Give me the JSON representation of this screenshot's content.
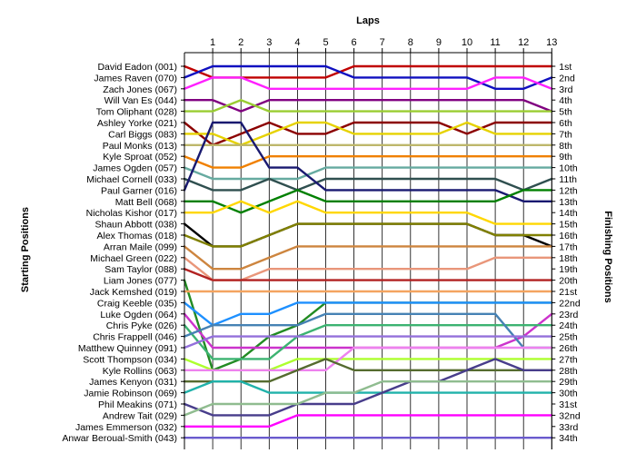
{
  "chart_data": {
    "type": "line",
    "title": "Laps",
    "ylabel_left": "Starting Positions",
    "ylabel_right": "Finishing Positions",
    "x": [
      0,
      1,
      2,
      3,
      4,
      5,
      6,
      7,
      8,
      9,
      10,
      11,
      12,
      13
    ],
    "x_tick_labels": [
      "1",
      "2",
      "3",
      "4",
      "5",
      "6",
      "7",
      "8",
      "9",
      "10",
      "11",
      "12",
      "13"
    ],
    "starting_positions": [
      "David Eadon (001)",
      "James Raven (070)",
      "Zach Jones (067)",
      "Will Van Es (044)",
      "Tom Oliphant (028)",
      "Ashley Yorke (021)",
      "Carl Biggs (083)",
      "Paul Monks (013)",
      "Kyle Sproat (052)",
      "James Ogden (057)",
      "Michael Cornell (033)",
      "Paul Garner (016)",
      "Matt Bell (068)",
      "Nicholas Kishor (017)",
      "Shaun Abbott (038)",
      "Alex Thomas (018)",
      "Arran Maile (099)",
      "Michael Green (022)",
      "Sam Taylor (088)",
      "Liam Jones (077)",
      "Jack Kemshed (019)",
      "Craig Keeble (035)",
      "Luke Ogden (064)",
      "Chris Pyke (026)",
      "Chris Frappell (046)",
      "Matthew Quinney (091)",
      "Scott Thompson (034)",
      "Kyle Rollins (063)",
      "James Kenyon (031)",
      "Jamie Robinson (069)",
      "Phil Meakins (071)",
      "Andrew Tait (029)",
      "James Emmerson (032)",
      "Anwar Beroual-Smith (043)"
    ],
    "finishing_positions": [
      "1st",
      "2nd",
      "3rd",
      "4th",
      "5th",
      "6th",
      "7th",
      "8th",
      "9th",
      "10th",
      "11th",
      "12th",
      "13th",
      "14th",
      "15th",
      "16th",
      "17th",
      "18th",
      "19th",
      "20th",
      "21st",
      "22nd",
      "23rd",
      "24th",
      "25th",
      "26th",
      "27th",
      "28th",
      "29th",
      "30th",
      "31st",
      "32nd",
      "33rd",
      "34th"
    ],
    "series": [
      {
        "color": "#c00000",
        "values": [
          1,
          2,
          2,
          2,
          2,
          2,
          1,
          1,
          1,
          1,
          1,
          1,
          1,
          1
        ]
      },
      {
        "color": "#1010c0",
        "values": [
          2,
          1,
          1,
          1,
          1,
          1,
          2,
          2,
          2,
          2,
          2,
          3,
          3,
          2
        ]
      },
      {
        "color": "#ff20ff",
        "values": [
          3,
          2,
          2,
          3,
          3,
          3,
          3,
          3,
          3,
          3,
          3,
          2,
          2,
          3
        ]
      },
      {
        "color": "#800080",
        "values": [
          4,
          4,
          5,
          4,
          4,
          4,
          4,
          4,
          4,
          4,
          4,
          4,
          4,
          5
        ]
      },
      {
        "color": "#9acd32",
        "values": [
          5,
          5,
          4,
          5,
          5,
          5,
          5,
          5,
          5,
          5,
          5,
          5,
          5,
          5
        ]
      },
      {
        "color": "#8b0000",
        "values": [
          6,
          8,
          7,
          6,
          7,
          7,
          6,
          6,
          6,
          6,
          7,
          6,
          6,
          6
        ]
      },
      {
        "color": "#e6d200",
        "values": [
          7,
          7,
          8,
          7,
          6,
          6,
          7,
          7,
          7,
          7,
          6,
          7,
          7,
          7
        ]
      },
      {
        "color": "#bdb76b",
        "values": [
          8,
          8,
          8,
          8,
          8,
          8,
          8,
          8,
          8,
          8,
          8,
          8,
          8,
          8
        ]
      },
      {
        "color": "#f08000",
        "values": [
          9,
          10,
          10,
          9,
          9,
          9,
          9,
          9,
          9,
          9,
          9,
          9,
          9,
          9
        ]
      },
      {
        "color": "#66aaa0",
        "values": [
          10,
          11,
          11,
          11,
          11,
          10,
          10,
          10,
          10,
          10,
          10,
          10,
          10,
          10
        ]
      },
      {
        "color": "#2f4f4f",
        "values": [
          11,
          12,
          12,
          11,
          12,
          11,
          11,
          11,
          11,
          11,
          11,
          11,
          12,
          11
        ]
      },
      {
        "color": "#191970",
        "values": [
          12,
          6,
          6,
          10,
          10,
          12,
          12,
          12,
          12,
          12,
          12,
          12,
          13,
          13
        ]
      },
      {
        "color": "#008000",
        "values": [
          13,
          13,
          14,
          13,
          12,
          13,
          13,
          13,
          13,
          13,
          13,
          13,
          12,
          12
        ]
      },
      {
        "color": "#ffd700",
        "values": [
          14,
          14,
          13,
          14,
          13,
          14,
          14,
          14,
          14,
          14,
          14,
          15,
          15,
          15
        ]
      },
      {
        "color": "#000000",
        "values": [
          15,
          17,
          17,
          16,
          15,
          15,
          15,
          15,
          15,
          15,
          15,
          16,
          16,
          17
        ]
      },
      {
        "color": "#808000",
        "values": [
          16,
          17,
          17,
          16,
          15,
          15,
          15,
          15,
          15,
          15,
          15,
          16,
          16,
          16
        ]
      },
      {
        "color": "#cd853f",
        "values": [
          17,
          19,
          19,
          18,
          17,
          17,
          17,
          17,
          17,
          17,
          17,
          17,
          17,
          17
        ]
      },
      {
        "color": "#e9967a",
        "values": [
          18,
          20,
          20,
          19,
          19,
          19,
          19,
          19,
          19,
          19,
          19,
          18,
          18,
          18
        ]
      },
      {
        "color": "#b22222",
        "values": [
          19,
          20,
          20,
          20,
          20,
          20,
          20,
          20,
          20,
          20,
          20,
          20,
          20,
          20
        ]
      },
      {
        "color": "#228b22",
        "values": [
          20,
          28,
          27,
          25,
          24,
          22,
          22,
          22,
          22,
          22,
          22,
          22,
          22,
          22
        ]
      },
      {
        "color": "#f4a460",
        "values": [
          21,
          21,
          21,
          21,
          21,
          21,
          21,
          21,
          21,
          21,
          21,
          21,
          21,
          21
        ]
      },
      {
        "color": "#1e90ff",
        "values": [
          22,
          24,
          23,
          23,
          22,
          22,
          22,
          22,
          22,
          22,
          22,
          22,
          22,
          22
        ]
      },
      {
        "color": "#cc33cc",
        "values": [
          23,
          26,
          26,
          26,
          26,
          26,
          26,
          26,
          26,
          26,
          26,
          26,
          25,
          23
        ]
      },
      {
        "color": "#3cb371",
        "values": [
          24,
          27,
          27,
          27,
          25,
          24,
          24,
          24,
          24,
          24,
          24,
          24,
          24,
          24
        ]
      },
      {
        "color": "#4682b4",
        "values": [
          25,
          24,
          24,
          24,
          24,
          23,
          23,
          23,
          23,
          23,
          23,
          23,
          26,
          26
        ]
      },
      {
        "color": "#9370db",
        "values": [
          26,
          25,
          25,
          25,
          25,
          25,
          25,
          25,
          25,
          25,
          25,
          25,
          25,
          25
        ]
      },
      {
        "color": "#adff2f",
        "values": [
          27,
          28,
          28,
          28,
          27,
          27,
          27,
          27,
          27,
          27,
          27,
          27,
          27,
          27
        ]
      },
      {
        "color": "#ee82ee",
        "values": [
          28,
          28,
          28,
          28,
          28,
          28,
          26,
          26,
          26,
          26,
          26,
          26,
          26,
          26
        ]
      },
      {
        "color": "#556b2f",
        "values": [
          29,
          29,
          29,
          29,
          28,
          27,
          28,
          28,
          28,
          28,
          28,
          28,
          28,
          28
        ]
      },
      {
        "color": "#20b2aa",
        "values": [
          30,
          29,
          29,
          30,
          30,
          30,
          30,
          30,
          30,
          30,
          30,
          30,
          30,
          30
        ]
      },
      {
        "color": "#483d8b",
        "values": [
          31,
          32,
          32,
          32,
          31,
          31,
          31,
          30,
          29,
          29,
          28,
          27,
          28,
          28
        ]
      },
      {
        "color": "#8fbc8f",
        "values": [
          32,
          31,
          31,
          31,
          31,
          30,
          30,
          29,
          29,
          29,
          29,
          29,
          29,
          29
        ]
      },
      {
        "color": "#ff00ff",
        "values": [
          33,
          33,
          33,
          33,
          32,
          32,
          32,
          32,
          32,
          32,
          32,
          32,
          32,
          32
        ]
      },
      {
        "color": "#6a5acd",
        "values": [
          34,
          34,
          34,
          34,
          34,
          34,
          34,
          34,
          34,
          34,
          34,
          34,
          34,
          34
        ]
      }
    ],
    "grid": true,
    "legend": "none"
  }
}
